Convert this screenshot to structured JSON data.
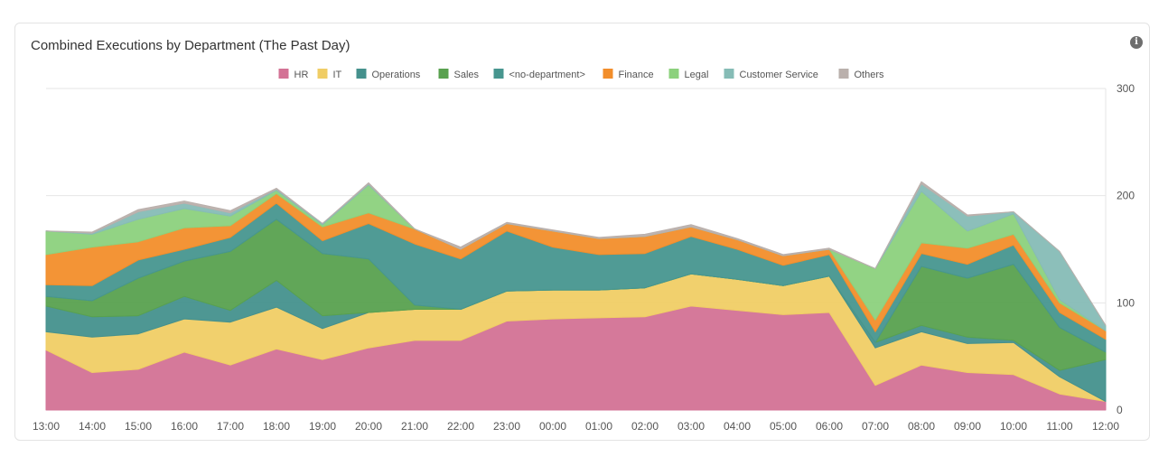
{
  "card": {
    "title": "Combined Executions by Department (The Past Day)",
    "info_icon": "info-icon"
  },
  "chart_data": {
    "type": "area",
    "stacked": true,
    "title": "Combined Executions by Department (The Past Day)",
    "xlabel": "",
    "ylabel": "",
    "ylim": [
      0,
      300
    ],
    "yticks": [
      0,
      100,
      200,
      300
    ],
    "y_axis_side": "right",
    "legend_position": "top",
    "grid": true,
    "x": [
      "13:00",
      "14:00",
      "15:00",
      "16:00",
      "17:00",
      "18:00",
      "19:00",
      "20:00",
      "21:00",
      "22:00",
      "23:00",
      "00:00",
      "01:00",
      "02:00",
      "03:00",
      "04:00",
      "05:00",
      "06:00",
      "07:00",
      "08:00",
      "09:00",
      "10:00",
      "11:00",
      "12:00"
    ],
    "series": [
      {
        "name": "HR",
        "color": "#d37295",
        "values": [
          56,
          35,
          38,
          54,
          42,
          57,
          47,
          58,
          65,
          65,
          83,
          85,
          86,
          87,
          97,
          93,
          89,
          91,
          23,
          42,
          35,
          33,
          15,
          8
        ]
      },
      {
        "name": "IT",
        "color": "#f0cd65",
        "values": [
          17,
          33,
          33,
          31,
          40,
          39,
          29,
          33,
          29,
          29,
          28,
          27,
          26,
          27,
          30,
          29,
          27,
          34,
          35,
          31,
          27,
          30,
          16,
          0
        ]
      },
      {
        "name": "Operations",
        "color": "#45918d",
        "values": [
          24,
          19,
          17,
          21,
          11,
          25,
          12,
          0,
          0,
          0,
          0,
          0,
          0,
          0,
          0,
          0,
          0,
          0,
          5,
          6,
          6,
          2,
          6,
          39
        ]
      },
      {
        "name": "Sales",
        "color": "#59a14f",
        "values": [
          9,
          15,
          35,
          33,
          55,
          57,
          58,
          50,
          4,
          0,
          0,
          0,
          0,
          0,
          0,
          0,
          0,
          0,
          0,
          55,
          55,
          71,
          40,
          7
        ]
      },
      {
        "name": "<no-department>",
        "color": "#47968f",
        "values": [
          11,
          14,
          17,
          11,
          13,
          15,
          12,
          33,
          57,
          47,
          56,
          40,
          33,
          32,
          35,
          28,
          19,
          20,
          10,
          12,
          13,
          18,
          14,
          12
        ]
      },
      {
        "name": "Finance",
        "color": "#f28e2b",
        "values": [
          28,
          36,
          17,
          20,
          11,
          9,
          13,
          10,
          14,
          9,
          7,
          15,
          15,
          16,
          9,
          9,
          9,
          5,
          11,
          10,
          15,
          10,
          9,
          8
        ]
      },
      {
        "name": "Legal",
        "color": "#8cd17d",
        "values": [
          22,
          12,
          21,
          18,
          9,
          3,
          2,
          26,
          0,
          0,
          0,
          0,
          0,
          0,
          0,
          0,
          0,
          0,
          48,
          48,
          16,
          19,
          3,
          0
        ]
      },
      {
        "name": "Customer Service",
        "color": "#86bcb6",
        "values": [
          0,
          1,
          7,
          5,
          3,
          1,
          1,
          1,
          0,
          0,
          0,
          0,
          0,
          0,
          0,
          0,
          0,
          0,
          0,
          7,
          14,
          2,
          45,
          5
        ]
      },
      {
        "name": "Others",
        "color": "#bab0ac",
        "values": [
          0,
          1,
          2,
          2,
          2,
          1,
          0,
          1,
          0,
          2,
          1,
          1,
          1,
          2,
          2,
          1,
          1,
          1,
          0,
          2,
          1,
          0,
          0,
          0
        ]
      }
    ]
  }
}
